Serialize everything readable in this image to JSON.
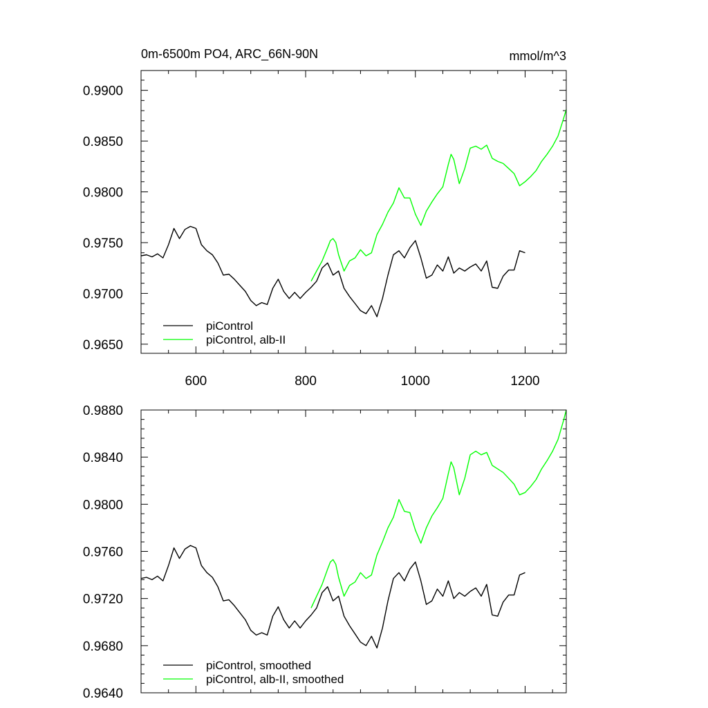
{
  "chart_data": [
    {
      "type": "line",
      "title": "0m-6500m PO4, ARC_66N-90N",
      "units": "mmol/m^3",
      "xlim": [
        500,
        1275
      ],
      "ylim": [
        0.9641,
        0.99195
      ],
      "x_ticks": [
        600,
        800,
        1000,
        1200
      ],
      "x_tick_labels": [
        "600",
        "800",
        "1000",
        "1200"
      ],
      "y_ticks": [
        0.965,
        0.97,
        0.975,
        0.98,
        0.985,
        0.99
      ],
      "y_tick_labels": [
        "0.9650",
        "0.9700",
        "0.9750",
        "0.9800",
        "0.9850",
        "0.9900"
      ],
      "series": [
        {
          "name": "piControl",
          "color": "#000000",
          "x": [
            500,
            510,
            520,
            530,
            540,
            550,
            560,
            570,
            580,
            590,
            600,
            610,
            620,
            630,
            640,
            650,
            660,
            670,
            680,
            690,
            700,
            710,
            720,
            730,
            740,
            750,
            760,
            770,
            780,
            790,
            800,
            810,
            820,
            830,
            840,
            850,
            860,
            870,
            880,
            890,
            900,
            910,
            920,
            930,
            940,
            950,
            960,
            970,
            980,
            990,
            1000,
            1010,
            1020,
            1030,
            1040,
            1050,
            1060,
            1070,
            1080,
            1090,
            1100,
            1110,
            1120,
            1130,
            1140,
            1150,
            1160,
            1170,
            1180,
            1190,
            1200
          ],
          "values": [
            0.9737,
            0.9738,
            0.9736,
            0.9739,
            0.9735,
            0.9748,
            0.9764,
            0.9754,
            0.9763,
            0.9766,
            0.9764,
            0.9748,
            0.9742,
            0.9738,
            0.973,
            0.9718,
            0.9719,
            0.9714,
            0.9708,
            0.9702,
            0.9693,
            0.9688,
            0.9691,
            0.9689,
            0.9705,
            0.9714,
            0.9702,
            0.9695,
            0.9701,
            0.9695,
            0.9701,
            0.9706,
            0.9712,
            0.9725,
            0.973,
            0.9718,
            0.9722,
            0.9705,
            0.9697,
            0.969,
            0.9683,
            0.968,
            0.9688,
            0.9677,
            0.9695,
            0.9718,
            0.9738,
            0.9742,
            0.9735,
            0.9745,
            0.9752,
            0.9735,
            0.9715,
            0.9718,
            0.9728,
            0.9722,
            0.9736,
            0.972,
            0.9725,
            0.9722,
            0.9726,
            0.9729,
            0.9722,
            0.9732,
            0.9706,
            0.9705,
            0.9717,
            0.9723,
            0.9723,
            0.9742,
            0.974
          ]
        },
        {
          "name": "piControl, alb-II",
          "color": "#00ff00",
          "x": [
            810,
            820,
            830,
            840,
            845,
            850,
            855,
            860,
            870,
            880,
            890,
            900,
            910,
            920,
            930,
            940,
            950,
            960,
            970,
            980,
            990,
            1000,
            1010,
            1020,
            1030,
            1040,
            1050,
            1060,
            1065,
            1070,
            1080,
            1090,
            1100,
            1110,
            1120,
            1130,
            1140,
            1150,
            1160,
            1170,
            1180,
            1190,
            1200,
            1210,
            1220,
            1230,
            1240,
            1250,
            1260,
            1270,
            1275
          ],
          "values": [
            0.9712,
            0.9722,
            0.9732,
            0.9745,
            0.9752,
            0.9754,
            0.975,
            0.9738,
            0.9722,
            0.9732,
            0.9735,
            0.9743,
            0.9737,
            0.974,
            0.9758,
            0.9768,
            0.978,
            0.9789,
            0.9804,
            0.9794,
            0.9794,
            0.9778,
            0.9767,
            0.9781,
            0.979,
            0.9798,
            0.9805,
            0.9827,
            0.9837,
            0.9832,
            0.9808,
            0.9823,
            0.9843,
            0.9845,
            0.9842,
            0.9846,
            0.9833,
            0.983,
            0.9828,
            0.9823,
            0.9818,
            0.9806,
            0.981,
            0.9815,
            0.9821,
            0.983,
            0.9837,
            0.9845,
            0.9855,
            0.9872,
            0.9881
          ]
        }
      ],
      "legend": [
        "piControl",
        "piControl, alb-II"
      ],
      "legend_position": "bottom-left"
    },
    {
      "type": "line",
      "xlim": [
        500,
        1275
      ],
      "ylim": [
        0.964,
        0.988
      ],
      "x_ticks": [
        600,
        800,
        1000,
        1200
      ],
      "y_ticks": [
        0.964,
        0.968,
        0.972,
        0.976,
        0.98,
        0.984,
        0.988
      ],
      "y_tick_labels": [
        "0.9640",
        "0.9680",
        "0.9720",
        "0.9760",
        "0.9800",
        "0.9840",
        "0.9880"
      ],
      "series": [
        {
          "name": "piControl, smoothed",
          "color": "#000000",
          "x": [
            500,
            510,
            520,
            530,
            540,
            550,
            560,
            570,
            580,
            590,
            600,
            610,
            620,
            630,
            640,
            650,
            660,
            670,
            680,
            690,
            700,
            710,
            720,
            730,
            740,
            750,
            760,
            770,
            780,
            790,
            800,
            810,
            820,
            830,
            840,
            850,
            860,
            870,
            880,
            890,
            900,
            910,
            920,
            930,
            940,
            950,
            960,
            970,
            980,
            990,
            1000,
            1010,
            1020,
            1030,
            1040,
            1050,
            1060,
            1070,
            1080,
            1090,
            1100,
            1110,
            1120,
            1130,
            1140,
            1150,
            1160,
            1170,
            1180,
            1190,
            1200
          ],
          "values": [
            0.9737,
            0.9738,
            0.9736,
            0.9739,
            0.9735,
            0.9748,
            0.9763,
            0.9754,
            0.9762,
            0.9765,
            0.9763,
            0.9748,
            0.9742,
            0.9738,
            0.973,
            0.9718,
            0.9719,
            0.9714,
            0.9708,
            0.9702,
            0.9693,
            0.9689,
            0.9691,
            0.9689,
            0.9705,
            0.9713,
            0.9702,
            0.9695,
            0.9701,
            0.9695,
            0.9701,
            0.9706,
            0.9712,
            0.9725,
            0.973,
            0.9718,
            0.9722,
            0.9705,
            0.9697,
            0.969,
            0.9683,
            0.968,
            0.9688,
            0.9678,
            0.9695,
            0.9718,
            0.9737,
            0.9742,
            0.9735,
            0.9745,
            0.9751,
            0.9735,
            0.9715,
            0.9718,
            0.9728,
            0.9722,
            0.9735,
            0.972,
            0.9725,
            0.9722,
            0.9726,
            0.9729,
            0.9722,
            0.9732,
            0.9706,
            0.9705,
            0.9717,
            0.9723,
            0.9723,
            0.974,
            0.9742
          ]
        },
        {
          "name": "piControl, alb-II, smoothed",
          "color": "#00ff00",
          "x": [
            810,
            820,
            830,
            840,
            845,
            850,
            855,
            860,
            870,
            880,
            890,
            900,
            910,
            920,
            930,
            940,
            950,
            960,
            970,
            980,
            990,
            1000,
            1010,
            1020,
            1030,
            1040,
            1050,
            1060,
            1065,
            1070,
            1080,
            1090,
            1100,
            1110,
            1120,
            1130,
            1140,
            1150,
            1160,
            1170,
            1180,
            1190,
            1200,
            1210,
            1220,
            1230,
            1240,
            1250,
            1260,
            1270,
            1275
          ],
          "values": [
            0.9712,
            0.9722,
            0.9732,
            0.9745,
            0.9751,
            0.9753,
            0.9749,
            0.9738,
            0.9722,
            0.9731,
            0.9734,
            0.9742,
            0.9737,
            0.974,
            0.9757,
            0.9768,
            0.978,
            0.9789,
            0.9804,
            0.9794,
            0.9793,
            0.9778,
            0.9767,
            0.978,
            0.979,
            0.9797,
            0.9805,
            0.9826,
            0.9836,
            0.9831,
            0.9808,
            0.9822,
            0.9842,
            0.9845,
            0.9842,
            0.9844,
            0.9833,
            0.983,
            0.9827,
            0.9822,
            0.9817,
            0.9808,
            0.981,
            0.9815,
            0.9821,
            0.983,
            0.9837,
            0.9845,
            0.9855,
            0.9871,
            0.988
          ]
        }
      ],
      "legend": [
        "piControl, smoothed",
        "piControl, alb-II, smoothed"
      ],
      "legend_position": "bottom-left"
    }
  ]
}
